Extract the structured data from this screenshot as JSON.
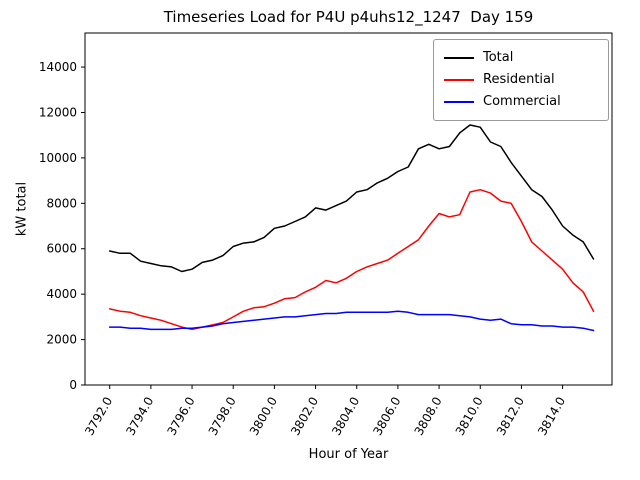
{
  "chart_data": {
    "type": "line",
    "title": "Timeseries Load for P4U p4uhs12_1247  Day 159",
    "xlabel": "Hour of Year",
    "ylabel": "kW total",
    "grid": false,
    "legend_position": "upper right",
    "xlim": [
      3790.8,
      3816.4
    ],
    "ylim": [
      0,
      15500
    ],
    "xtick_values": [
      3792,
      3794,
      3796,
      3798,
      3800,
      3802,
      3804,
      3806,
      3808,
      3810,
      3812,
      3814
    ],
    "xtick_labels": [
      "3792.0",
      "3794.0",
      "3796.0",
      "3798.0",
      "3800.0",
      "3802.0",
      "3804.0",
      "3806.0",
      "3808.0",
      "3810.0",
      "3812.0",
      "3814.0"
    ],
    "ytick_values": [
      0,
      2000,
      4000,
      6000,
      8000,
      10000,
      12000,
      14000
    ],
    "ytick_labels": [
      "0",
      "2000",
      "4000",
      "6000",
      "8000",
      "10000",
      "12000",
      "14000"
    ],
    "x": [
      3792,
      3792.5,
      3793,
      3793.5,
      3794,
      3794.5,
      3795,
      3795.5,
      3796,
      3796.5,
      3797,
      3797.5,
      3798,
      3798.5,
      3799,
      3799.5,
      3800,
      3800.5,
      3801,
      3801.5,
      3802,
      3802.5,
      3803,
      3803.5,
      3804,
      3804.5,
      3805,
      3805.5,
      3806,
      3806.5,
      3807,
      3807.5,
      3808,
      3808.5,
      3809,
      3809.5,
      3810,
      3810.5,
      3811,
      3811.5,
      3812,
      3812.5,
      3813,
      3813.5,
      3814,
      3814.5,
      3815,
      3815.5
    ],
    "series": [
      {
        "name": "Total",
        "color": "#000000",
        "values": [
          5900,
          5800,
          5800,
          5450,
          5350,
          5250,
          5200,
          5000,
          5100,
          5400,
          5500,
          5700,
          6100,
          6250,
          6300,
          6500,
          6900,
          7000,
          7200,
          7400,
          7800,
          7700,
          7900,
          8100,
          8500,
          8600,
          8900,
          9100,
          9400,
          9600,
          10400,
          10600,
          10400,
          10500,
          11100,
          11450,
          11350,
          10700,
          10500,
          9800,
          9200,
          8600,
          8300,
          7700,
          7000,
          6600,
          6300,
          5550
        ]
      },
      {
        "name": "Residential",
        "color": "#ff0000",
        "values": [
          3350,
          3250,
          3200,
          3050,
          2950,
          2850,
          2700,
          2550,
          2450,
          2550,
          2650,
          2750,
          3000,
          3250,
          3400,
          3450,
          3600,
          3800,
          3850,
          4100,
          4300,
          4600,
          4500,
          4700,
          5000,
          5200,
          5350,
          5500,
          5800,
          6100,
          6400,
          7000,
          7550,
          7400,
          7500,
          8500,
          8600,
          8450,
          8100,
          8000,
          7200,
          6300,
          5900,
          5500,
          5100,
          4500,
          4100,
          3250
        ]
      },
      {
        "name": "Commercial",
        "color": "#0000ff",
        "values": [
          2550,
          2550,
          2500,
          2500,
          2450,
          2450,
          2450,
          2500,
          2500,
          2550,
          2600,
          2700,
          2750,
          2800,
          2850,
          2900,
          2950,
          3000,
          3000,
          3050,
          3100,
          3150,
          3150,
          3200,
          3200,
          3200,
          3200,
          3200,
          3250,
          3200,
          3100,
          3100,
          3100,
          3100,
          3050,
          3000,
          2900,
          2850,
          2900,
          2700,
          2650,
          2650,
          2600,
          2600,
          2550,
          2550,
          2500,
          2400
        ]
      }
    ]
  }
}
